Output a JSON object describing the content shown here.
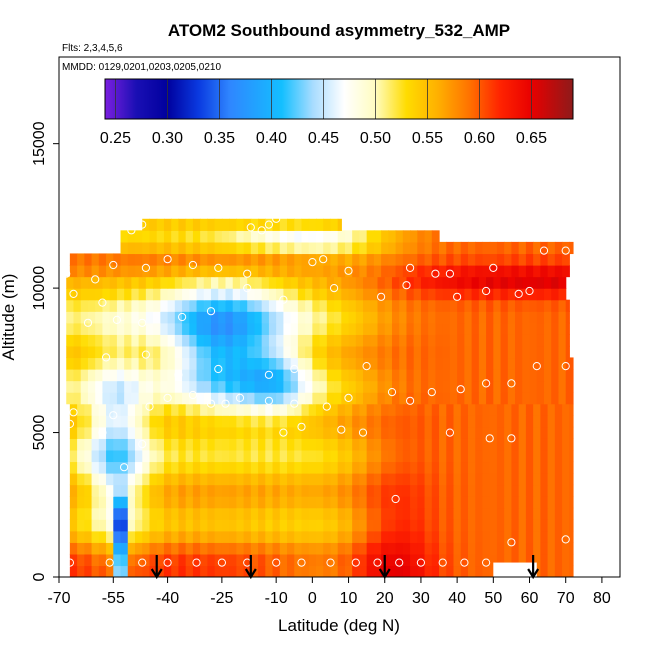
{
  "chart_data": {
    "type": "heatmap",
    "title": "ATOM2 Southbound asymmetry_532_AMP",
    "subtitle_flights": "Flts: 2,3,4,5,6",
    "subtitle_dates": "MMDD: 0129,0201,0203,0205,0210",
    "xlabel": "Latitude (deg N)",
    "ylabel": "Altitude (m)",
    "xlim": [
      -70,
      85
    ],
    "ylim": [
      0,
      18000
    ],
    "x_ticks": [
      -70,
      -55,
      -40,
      -25,
      -10,
      0,
      10,
      20,
      30,
      40,
      50,
      60,
      70,
      80
    ],
    "x_tick_labels": [
      "-70",
      "-55",
      "-40",
      "-25",
      "-10",
      "0",
      "10",
      "20",
      "30",
      "40",
      "50",
      "60",
      "70",
      "80"
    ],
    "y_ticks": [
      0,
      5000,
      10000,
      15000
    ],
    "y_tick_labels": [
      "0",
      "5000",
      "10000",
      "15000"
    ],
    "colorbar": {
      "range": [
        0.24,
        0.69
      ],
      "ticks": [
        0.25,
        0.3,
        0.35,
        0.4,
        0.45,
        0.5,
        0.55,
        0.6,
        0.65
      ],
      "tick_labels": [
        "0.25",
        "0.30",
        "0.35",
        "0.40",
        "0.45",
        "0.50",
        "0.55",
        "0.60",
        "0.65"
      ],
      "stops": [
        [
          0.24,
          "#7b1fe0"
        ],
        [
          0.27,
          "#1a0fb4"
        ],
        [
          0.3,
          "#00009e"
        ],
        [
          0.33,
          "#0a3ae0"
        ],
        [
          0.36,
          "#2f86ff"
        ],
        [
          0.41,
          "#14bfff"
        ],
        [
          0.44,
          "#a8dcff"
        ],
        [
          0.47,
          "#ffffff"
        ],
        [
          0.5,
          "#fffcc0"
        ],
        [
          0.53,
          "#ffdc00"
        ],
        [
          0.56,
          "#ffb000"
        ],
        [
          0.59,
          "#ff7300"
        ],
        [
          0.62,
          "#ff2300"
        ],
        [
          0.65,
          "#e80000"
        ],
        [
          0.69,
          "#8e1a1a"
        ]
      ]
    },
    "arrows_lat": [
      -43,
      -17,
      20,
      61
    ],
    "sample_points": [
      [
        -67,
        500
      ],
      [
        -56,
        500
      ],
      [
        -47,
        500
      ],
      [
        -40,
        500
      ],
      [
        -32,
        500
      ],
      [
        -25,
        500
      ],
      [
        -18,
        500
      ],
      [
        -10,
        500
      ],
      [
        -3,
        500
      ],
      [
        5,
        500
      ],
      [
        12,
        500
      ],
      [
        18,
        500
      ],
      [
        24,
        500
      ],
      [
        30,
        500
      ],
      [
        36,
        500
      ],
      [
        42,
        500
      ],
      [
        48,
        500
      ],
      [
        55,
        1200
      ],
      [
        70,
        1300
      ],
      [
        23,
        2700
      ],
      [
        -52,
        3800
      ],
      [
        -47,
        4600
      ],
      [
        -8,
        5000
      ],
      [
        -3,
        5200
      ],
      [
        8,
        5100
      ],
      [
        14,
        5000
      ],
      [
        -67,
        5300
      ],
      [
        -66,
        5700
      ],
      [
        -58,
        5000
      ],
      [
        -55,
        5600
      ],
      [
        -45,
        5900
      ],
      [
        -40,
        6200
      ],
      [
        -33,
        6300
      ],
      [
        -28,
        6000
      ],
      [
        -24,
        6000
      ],
      [
        -20,
        6200
      ],
      [
        -12,
        6100
      ],
      [
        -5,
        6000
      ],
      [
        4,
        5900
      ],
      [
        10,
        6200
      ],
      [
        22,
        6400
      ],
      [
        27,
        6100
      ],
      [
        33,
        6400
      ],
      [
        41,
        6500
      ],
      [
        48,
        6700
      ],
      [
        55,
        6700
      ],
      [
        62,
        7300
      ],
      [
        70,
        7300
      ],
      [
        49,
        4800
      ],
      [
        55,
        4800
      ],
      [
        38,
        5000
      ],
      [
        -57,
        7600
      ],
      [
        -46,
        7700
      ],
      [
        -37,
        7000
      ],
      [
        -26,
        7200
      ],
      [
        -12,
        7000
      ],
      [
        -5,
        7200
      ],
      [
        15,
        7300
      ],
      [
        -62,
        8800
      ],
      [
        -58,
        9500
      ],
      [
        -54,
        8900
      ],
      [
        -47,
        8800
      ],
      [
        -36,
        9000
      ],
      [
        -28,
        9200
      ],
      [
        -18,
        10000
      ],
      [
        -8,
        9600
      ],
      [
        6,
        10000
      ],
      [
        19,
        9700
      ],
      [
        26,
        10100
      ],
      [
        34,
        10500
      ],
      [
        40,
        9700
      ],
      [
        48,
        9900
      ],
      [
        57,
        9800
      ],
      [
        60,
        9900
      ],
      [
        -68,
        10500
      ],
      [
        -66,
        9800
      ],
      [
        -60,
        10300
      ],
      [
        -55,
        10800
      ],
      [
        -46,
        10700
      ],
      [
        -40,
        11000
      ],
      [
        -33,
        10800
      ],
      [
        -26,
        10700
      ],
      [
        -18,
        10500
      ],
      [
        0,
        10900
      ],
      [
        3,
        11000
      ],
      [
        10,
        10600
      ],
      [
        27,
        10700
      ],
      [
        38,
        10500
      ],
      [
        50,
        10700
      ],
      [
        64,
        11300
      ],
      [
        70,
        11300
      ],
      [
        -50,
        12000
      ],
      [
        -47,
        12200
      ],
      [
        -17,
        12100
      ],
      [
        -14,
        12000
      ],
      [
        -10,
        12400
      ],
      [
        -12,
        12200
      ]
    ]
  }
}
